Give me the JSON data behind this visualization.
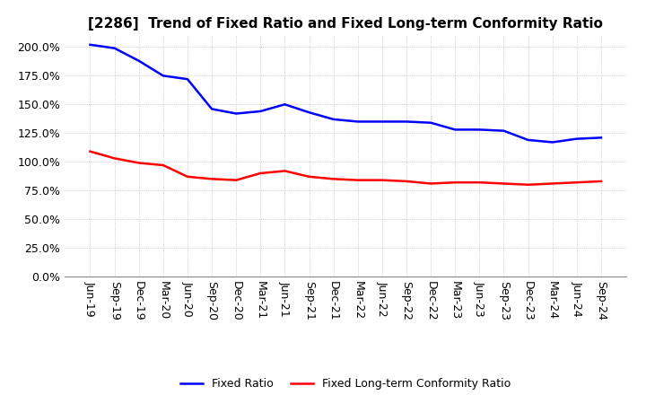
{
  "title": "[2286]  Trend of Fixed Ratio and Fixed Long-term Conformity Ratio",
  "x_labels": [
    "Jun-19",
    "Sep-19",
    "Dec-19",
    "Mar-20",
    "Jun-20",
    "Sep-20",
    "Dec-20",
    "Mar-21",
    "Jun-21",
    "Sep-21",
    "Dec-21",
    "Mar-22",
    "Jun-22",
    "Sep-22",
    "Dec-22",
    "Mar-23",
    "Jun-23",
    "Sep-23",
    "Dec-23",
    "Mar-24",
    "Jun-24",
    "Sep-24"
  ],
  "fixed_ratio": [
    2.02,
    1.99,
    1.88,
    1.75,
    1.72,
    1.46,
    1.42,
    1.44,
    1.5,
    1.43,
    1.37,
    1.35,
    1.35,
    1.35,
    1.34,
    1.28,
    1.28,
    1.27,
    1.19,
    1.17,
    1.2,
    1.21
  ],
  "fixed_lt_ratio": [
    1.09,
    1.03,
    0.99,
    0.97,
    0.87,
    0.85,
    0.84,
    0.9,
    0.92,
    0.87,
    0.85,
    0.84,
    0.84,
    0.83,
    0.81,
    0.82,
    0.82,
    0.81,
    0.8,
    0.81,
    0.82,
    0.83
  ],
  "fixed_ratio_color": "#0000FF",
  "fixed_lt_ratio_color": "#FF0000",
  "ylim": [
    0.0,
    2.1
  ],
  "yticks": [
    0.0,
    0.25,
    0.5,
    0.75,
    1.0,
    1.25,
    1.5,
    1.75,
    2.0
  ],
  "background_color": "#FFFFFF",
  "grid_color": "#AAAAAA",
  "legend_fixed_ratio": "Fixed Ratio",
  "legend_fixed_lt_ratio": "Fixed Long-term Conformity Ratio",
  "title_fontsize": 11,
  "tick_fontsize": 9,
  "legend_fontsize": 9,
  "line_width": 1.8
}
